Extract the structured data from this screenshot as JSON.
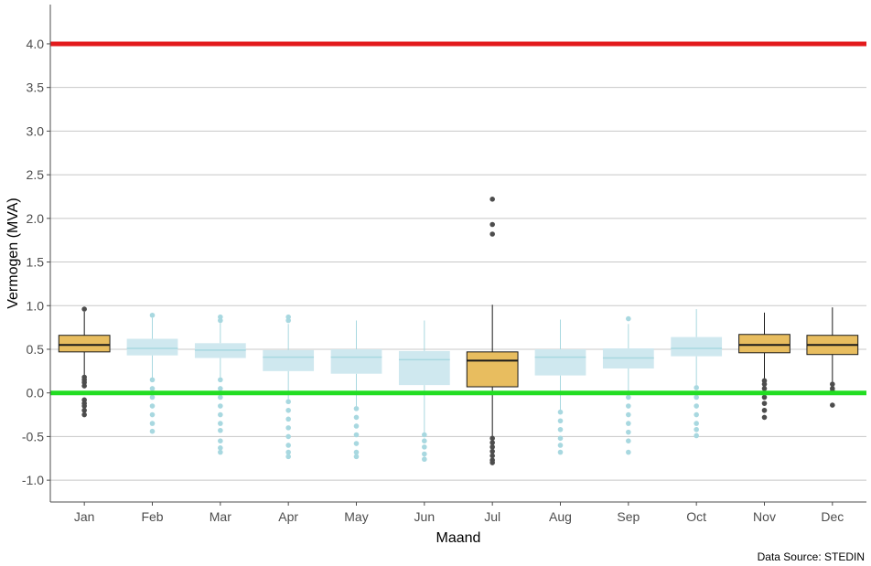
{
  "chart_data": {
    "type": "boxplot",
    "xlabel": "Maand",
    "ylabel": "Vermogen (MVA)",
    "caption": "Data Source: STEDIN",
    "ylim": [
      -1.25,
      4.45
    ],
    "yticks": [
      -1.0,
      -0.5,
      0.0,
      0.5,
      1.0,
      1.5,
      2.0,
      2.5,
      3.0,
      3.5,
      4.0
    ],
    "ytick_labels": [
      "-1.0",
      "-0.5",
      "0.0",
      "0.5",
      "1.0",
      "1.5",
      "2.0",
      "2.5",
      "3.0",
      "3.5",
      "4.0"
    ],
    "grid": "horizontal",
    "reference_lines": [
      {
        "value": 4.0,
        "color": "#e31a1c"
      },
      {
        "value": 0.0,
        "color": "#22dd22"
      }
    ],
    "colors": {
      "highlight_fill": "#e8bd5f",
      "highlight_stroke": "#1a1a1a",
      "muted_fill": "#cfe8ef",
      "muted_stroke": "#a8d8e0"
    },
    "categories": [
      "Jan",
      "Feb",
      "Mar",
      "Apr",
      "May",
      "Jun",
      "Jul",
      "Aug",
      "Sep",
      "Oct",
      "Nov",
      "Dec"
    ],
    "boxes": [
      {
        "month": "Jan",
        "highlight": true,
        "q1": 0.47,
        "median": 0.55,
        "q3": 0.66,
        "whisker_low": 0.2,
        "whisker_high": 0.93,
        "outliers": [
          0.96,
          0.18,
          0.15,
          0.12,
          0.08,
          -0.08,
          -0.12,
          -0.15,
          -0.2,
          -0.25
        ]
      },
      {
        "month": "Feb",
        "highlight": false,
        "q1": 0.43,
        "median": 0.51,
        "q3": 0.62,
        "whisker_low": 0.17,
        "whisker_high": 0.86,
        "outliers": [
          0.89,
          0.15,
          0.05,
          -0.05,
          -0.15,
          -0.25,
          -0.35,
          -0.44
        ]
      },
      {
        "month": "Mar",
        "highlight": false,
        "q1": 0.4,
        "median": 0.49,
        "q3": 0.57,
        "whisker_low": 0.17,
        "whisker_high": 0.8,
        "outliers": [
          0.87,
          0.83,
          0.15,
          0.05,
          -0.05,
          -0.15,
          -0.25,
          -0.35,
          -0.43,
          -0.55,
          -0.63,
          -0.68
        ]
      },
      {
        "month": "Apr",
        "highlight": false,
        "q1": 0.25,
        "median": 0.41,
        "q3": 0.49,
        "whisker_low": -0.07,
        "whisker_high": 0.79,
        "outliers": [
          0.87,
          0.83,
          -0.1,
          -0.2,
          -0.3,
          -0.4,
          -0.5,
          -0.6,
          -0.68,
          -0.73
        ]
      },
      {
        "month": "May",
        "highlight": false,
        "q1": 0.22,
        "median": 0.41,
        "q3": 0.5,
        "whisker_low": -0.16,
        "whisker_high": 0.83,
        "outliers": [
          -0.18,
          -0.28,
          -0.38,
          -0.48,
          -0.58,
          -0.68,
          -0.73
        ]
      },
      {
        "month": "Jun",
        "highlight": false,
        "q1": 0.09,
        "median": 0.38,
        "q3": 0.48,
        "whisker_low": -0.46,
        "whisker_high": 0.83,
        "outliers": [
          -0.48,
          -0.55,
          -0.62,
          -0.7,
          -0.76
        ]
      },
      {
        "month": "Jul",
        "highlight": true,
        "q1": 0.07,
        "median": 0.37,
        "q3": 0.47,
        "whisker_low": -0.5,
        "whisker_high": 1.01,
        "outliers": [
          2.22,
          1.93,
          1.82,
          -0.52,
          -0.57,
          -0.62,
          -0.67,
          -0.72,
          -0.77,
          -0.8
        ]
      },
      {
        "month": "Aug",
        "highlight": false,
        "q1": 0.2,
        "median": 0.41,
        "q3": 0.5,
        "whisker_low": -0.2,
        "whisker_high": 0.84,
        "outliers": [
          -0.22,
          -0.32,
          -0.42,
          -0.52,
          -0.6,
          -0.68
        ]
      },
      {
        "month": "Sep",
        "highlight": false,
        "q1": 0.28,
        "median": 0.4,
        "q3": 0.51,
        "whisker_low": -0.03,
        "whisker_high": 0.79,
        "outliers": [
          0.85,
          -0.05,
          -0.15,
          -0.25,
          -0.35,
          -0.45,
          -0.55,
          -0.68
        ]
      },
      {
        "month": "Oct",
        "highlight": false,
        "q1": 0.42,
        "median": 0.51,
        "q3": 0.64,
        "whisker_low": 0.09,
        "whisker_high": 0.96,
        "outliers": [
          0.06,
          -0.05,
          -0.15,
          -0.25,
          -0.35,
          -0.42,
          -0.49
        ]
      },
      {
        "month": "Nov",
        "highlight": true,
        "q1": 0.46,
        "median": 0.55,
        "q3": 0.67,
        "whisker_low": 0.15,
        "whisker_high": 0.92,
        "outliers": [
          0.14,
          0.1,
          0.05,
          -0.05,
          -0.12,
          -0.2,
          -0.28
        ]
      },
      {
        "month": "Dec",
        "highlight": true,
        "q1": 0.44,
        "median": 0.55,
        "q3": 0.66,
        "whisker_low": 0.12,
        "whisker_high": 0.98,
        "outliers": [
          0.1,
          0.05,
          0.02,
          -0.14
        ]
      }
    ]
  }
}
